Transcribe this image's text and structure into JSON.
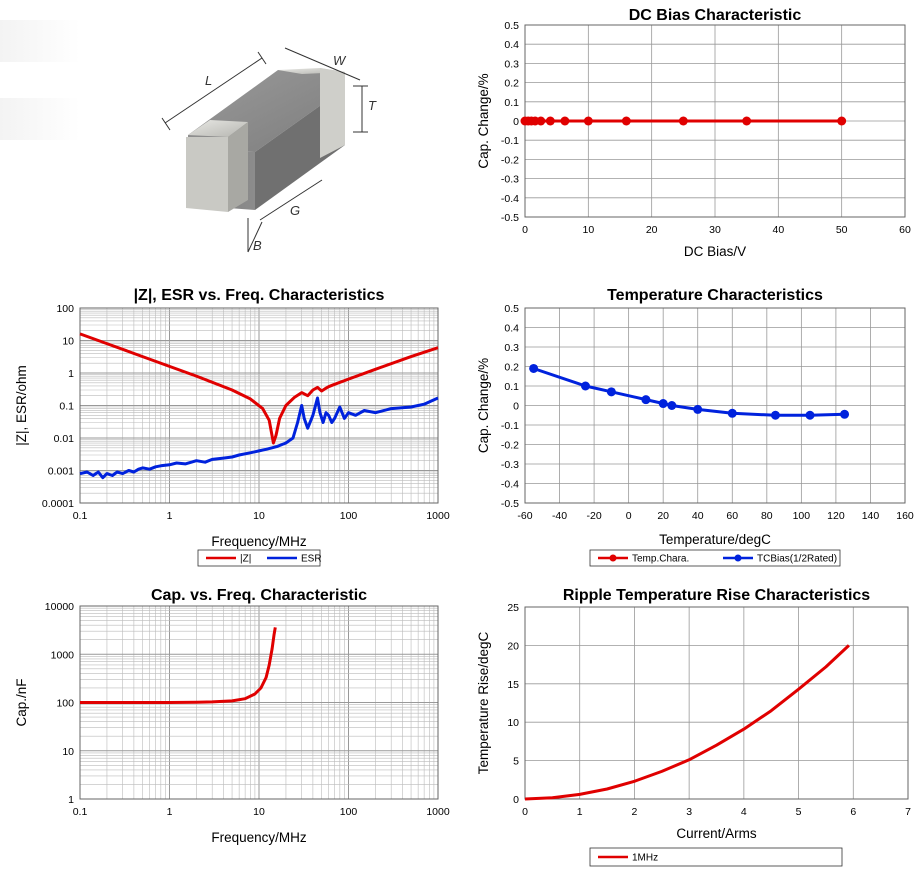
{
  "component_image": {
    "dimension_labels": [
      "L",
      "W",
      "T",
      "G",
      "B"
    ]
  },
  "chart_data": [
    {
      "id": "dc_bias",
      "type": "line",
      "title": "DC Bias Characteristic",
      "xlabel": "DC Bias/V",
      "ylabel": "Cap. Change/%",
      "xlim": [
        0,
        60
      ],
      "ylim": [
        -0.5,
        0.5
      ],
      "x_ticks": [
        "0",
        "10",
        "20",
        "30",
        "40",
        "50",
        "60"
      ],
      "y_ticks": [
        "0.5",
        "0.4",
        "0.3",
        "0.2",
        "0.1",
        "0",
        "-0.1",
        "-0.2",
        "-0.3",
        "-0.4",
        "-0.5"
      ],
      "grid": true,
      "series": [
        {
          "color": "#e00000",
          "markers": true,
          "x": [
            0,
            0.5,
            1,
            1.6,
            2.5,
            4,
            6.3,
            10,
            16,
            25,
            35,
            50
          ],
          "y": [
            0,
            0,
            0,
            0,
            0,
            0,
            0,
            0,
            0,
            0,
            0,
            0
          ]
        }
      ]
    },
    {
      "id": "impedance",
      "type": "line",
      "title": "|Z|, ESR vs. Freq. Characteristics",
      "xlabel": "Frequency/MHz",
      "ylabel": "|Z|, ESR/ohm",
      "xscale": "log",
      "yscale": "log",
      "xlim": [
        0.1,
        1000
      ],
      "ylim": [
        0.0001,
        100
      ],
      "x_ticks": [
        "0.1",
        "1",
        "10",
        "100",
        "1000"
      ],
      "y_ticks": [
        "100",
        "10",
        "1",
        "0.1",
        "0.01",
        "0.001",
        "0.0001"
      ],
      "grid": true,
      "legend_position": "bottom",
      "series": [
        {
          "name": "|Z|",
          "color": "#e00000",
          "x": [
            0.1,
            0.2,
            0.5,
            1,
            2,
            5,
            8,
            11,
            13,
            14.5,
            15.5,
            17,
            20,
            25,
            30,
            35,
            40,
            45,
            50,
            55,
            60,
            70,
            100,
            200,
            500,
            1000
          ],
          "y": [
            16,
            8,
            3.2,
            1.6,
            0.8,
            0.3,
            0.16,
            0.08,
            0.035,
            0.007,
            0.012,
            0.04,
            0.1,
            0.18,
            0.25,
            0.2,
            0.3,
            0.36,
            0.28,
            0.33,
            0.38,
            0.45,
            0.65,
            1.3,
            3.2,
            6
          ]
        },
        {
          "name": "ESR",
          "color": "#0022dd",
          "x": [
            0.1,
            0.12,
            0.14,
            0.16,
            0.18,
            0.2,
            0.23,
            0.26,
            0.3,
            0.35,
            0.4,
            0.45,
            0.5,
            0.6,
            0.7,
            0.8,
            1,
            1.2,
            1.5,
            2,
            2.5,
            3,
            4,
            5,
            6,
            8,
            10,
            12,
            14,
            16,
            20,
            24,
            27,
            30,
            32,
            35,
            40,
            45,
            48,
            52,
            56,
            60,
            65,
            70,
            80,
            90,
            100,
            120,
            150,
            200,
            300,
            500,
            700,
            1000
          ],
          "y": [
            0.0008,
            0.0009,
            0.0007,
            0.0009,
            0.0006,
            0.0008,
            0.0007,
            0.0009,
            0.0008,
            0.001,
            0.0009,
            0.0011,
            0.0012,
            0.0011,
            0.0013,
            0.0014,
            0.0015,
            0.0017,
            0.0016,
            0.002,
            0.0018,
            0.0022,
            0.0024,
            0.0026,
            0.003,
            0.0035,
            0.004,
            0.0045,
            0.005,
            0.0055,
            0.007,
            0.01,
            0.03,
            0.1,
            0.04,
            0.02,
            0.05,
            0.17,
            0.06,
            0.03,
            0.06,
            0.05,
            0.03,
            0.04,
            0.09,
            0.04,
            0.06,
            0.05,
            0.07,
            0.06,
            0.08,
            0.09,
            0.11,
            0.17
          ]
        }
      ]
    },
    {
      "id": "temperature",
      "type": "line",
      "title": "Temperature Characteristics",
      "xlabel": "Temperature/degC",
      "ylabel": "Cap. Change/%",
      "xlim": [
        -60,
        160
      ],
      "ylim": [
        -0.5,
        0.5
      ],
      "x_ticks": [
        "-60",
        "-40",
        "-20",
        "0",
        "20",
        "40",
        "60",
        "80",
        "100",
        "120",
        "140",
        "160"
      ],
      "y_ticks": [
        "0.5",
        "0.4",
        "0.3",
        "0.2",
        "0.1",
        "0",
        "-0.1",
        "-0.2",
        "-0.3",
        "-0.4",
        "-0.5"
      ],
      "grid": true,
      "legend_position": "bottom",
      "series": [
        {
          "name": "Temp.Chara.",
          "color": "#e00000",
          "markers": true,
          "x": [],
          "y": []
        },
        {
          "name": "TCBias(1/2Rated)",
          "color": "#0022dd",
          "markers": true,
          "x": [
            -55,
            -25,
            -10,
            10,
            20,
            25,
            40,
            60,
            85,
            105,
            125
          ],
          "y": [
            0.19,
            0.1,
            0.07,
            0.03,
            0.01,
            0,
            -0.02,
            -0.04,
            -0.05,
            -0.05,
            -0.045
          ]
        }
      ]
    },
    {
      "id": "cap_freq",
      "type": "line",
      "title": "Cap. vs. Freq. Characteristic",
      "xlabel": "Frequency/MHz",
      "ylabel": "Cap./nF",
      "xscale": "log",
      "yscale": "log",
      "xlim": [
        0.1,
        1000
      ],
      "ylim": [
        1,
        10000
      ],
      "x_ticks": [
        "0.1",
        "1",
        "10",
        "100",
        "1000"
      ],
      "y_ticks": [
        "10000",
        "1000",
        "100",
        "10",
        "1"
      ],
      "grid": true,
      "series": [
        {
          "color": "#e00000",
          "x": [
            0.1,
            0.3,
            1,
            2,
            3,
            5,
            7,
            9,
            10.5,
            12,
            13,
            14,
            14.7,
            15.2
          ],
          "y": [
            100,
            100,
            100,
            101,
            103,
            108,
            120,
            150,
            200,
            330,
            600,
            1300,
            2500,
            3600
          ]
        }
      ]
    },
    {
      "id": "ripple",
      "type": "line",
      "title": "Ripple Temperature Rise Characteristics",
      "xlabel": "Current/Arms",
      "ylabel": "Temperature Rise/degC",
      "xlim": [
        0,
        7
      ],
      "ylim": [
        0,
        25
      ],
      "x_ticks": [
        "0",
        "1",
        "2",
        "3",
        "4",
        "5",
        "6",
        "7"
      ],
      "y_ticks": [
        "25",
        "20",
        "15",
        "10",
        "5",
        "0"
      ],
      "grid": true,
      "legend_position": "bottom",
      "series": [
        {
          "name": "1MHz",
          "color": "#e00000",
          "x": [
            0,
            0.5,
            1,
            1.5,
            2,
            2.5,
            3,
            3.5,
            4,
            4.5,
            5,
            5.5,
            5.92
          ],
          "y": [
            0,
            0.15,
            0.6,
            1.3,
            2.3,
            3.6,
            5.1,
            7.0,
            9.1,
            11.5,
            14.3,
            17.2,
            20
          ]
        }
      ]
    }
  ]
}
